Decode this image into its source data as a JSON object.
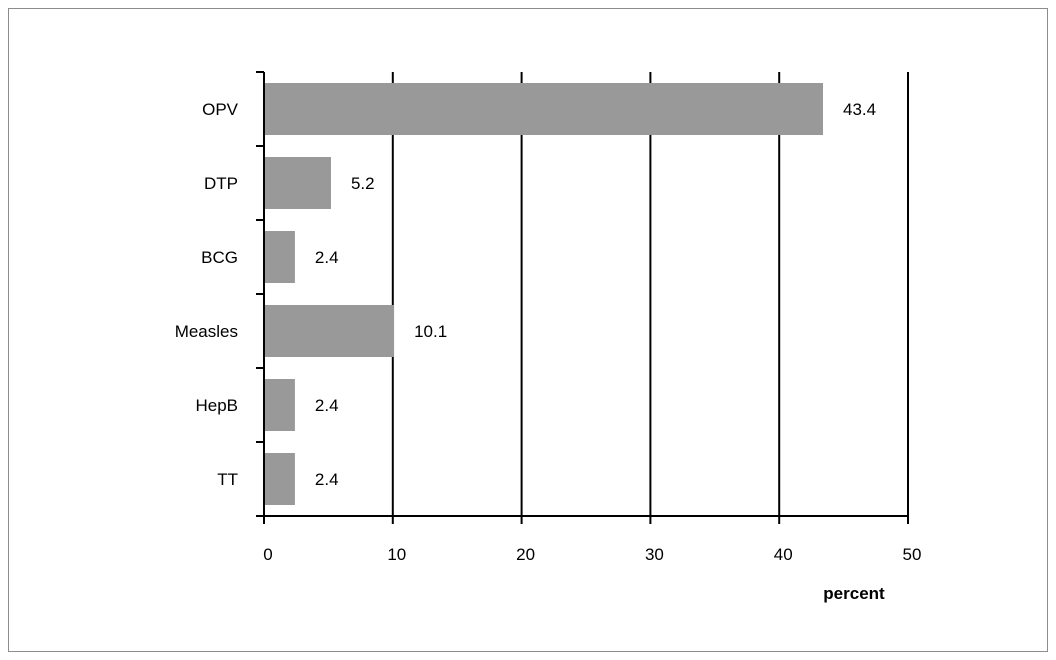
{
  "chart_data": {
    "type": "bar",
    "orientation": "horizontal",
    "categories": [
      "OPV",
      "DTP",
      "BCG",
      "Measles",
      "HepB",
      "TT"
    ],
    "values": [
      43.4,
      5.2,
      2.4,
      10.1,
      2.4,
      2.4
    ],
    "data_labels": [
      "43.4",
      "5.2",
      "2.4",
      "10.1",
      "2.4",
      "2.4"
    ],
    "xlabel": "percent",
    "xlim": [
      0,
      50
    ],
    "xticks": [
      0,
      10,
      20,
      30,
      40,
      50
    ],
    "xtick_labels": [
      "0",
      "10",
      "20",
      "30",
      "40",
      "50"
    ],
    "grid": "vertical",
    "legend": "none",
    "bar_color": "#999999"
  }
}
